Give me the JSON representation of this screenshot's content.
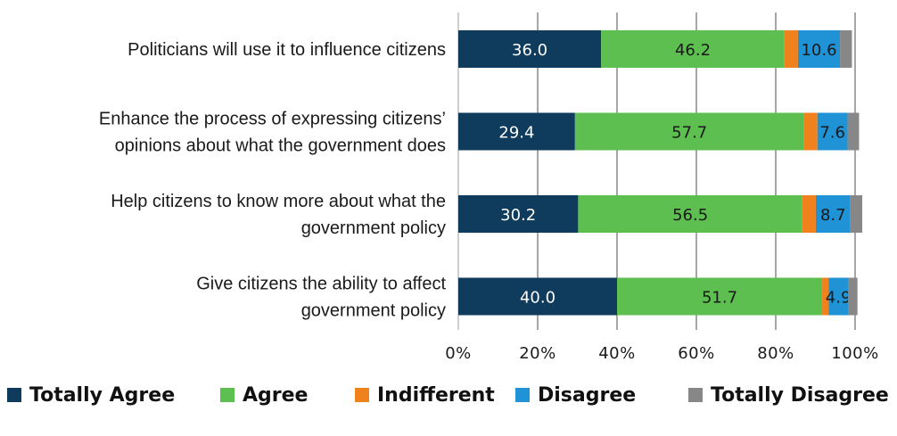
{
  "chart_data": {
    "type": "bar",
    "orientation": "horizontal",
    "stacked": "percent",
    "categories": [
      [
        "Politicians will use it to influence citizens"
      ],
      [
        "Enhance the process of expressing citizens’",
        "opinions about what the government does"
      ],
      [
        "Help citizens to know more about what the",
        "government policy"
      ],
      [
        "Give citizens the ability to affect",
        "government policy"
      ]
    ],
    "series": [
      {
        "name": "Totally Agree",
        "color": "#0f3b5c",
        "label_color": "#ffffff",
        "values": [
          36.0,
          29.4,
          30.2,
          40.0
        ],
        "labels": [
          "36.0",
          "29.4",
          "30.2",
          "40.0"
        ]
      },
      {
        "name": "Agree",
        "color": "#5cbf4f",
        "label_color": "#1a1a1a",
        "values": [
          46.2,
          57.7,
          56.5,
          51.7
        ],
        "labels": [
          "46.2",
          "57.7",
          "56.5",
          "51.7"
        ]
      },
      {
        "name": "Indifferent",
        "color": "#f0821e",
        "label_color": "#1a1a1a",
        "values": [
          3.4,
          3.4,
          3.4,
          1.6
        ],
        "labels": [
          "",
          "",
          "",
          ""
        ]
      },
      {
        "name": "Disagree",
        "color": "#1f93d6",
        "label_color": "#1a1a1a",
        "values": [
          10.6,
          7.6,
          8.7,
          4.9
        ],
        "labels": [
          "10.6",
          "7.6",
          "8.7",
          "4.9"
        ]
      },
      {
        "name": "Totally Disagree",
        "color": "#878787",
        "label_color": "#1a1a1a",
        "values": [
          3.0,
          2.9,
          3.0,
          2.4
        ],
        "labels": [
          "",
          "",
          "",
          ""
        ]
      }
    ],
    "x_ticks": [
      "0%",
      "20%",
      "40%",
      "60%",
      "80%",
      "100%"
    ],
    "xlim": [
      0,
      100
    ],
    "grid": true,
    "legend": "bottom"
  }
}
